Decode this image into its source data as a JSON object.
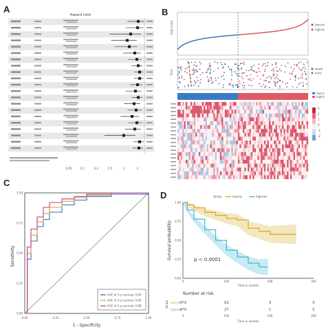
{
  "panels": {
    "A": {
      "letter": "A",
      "title": "Hazard ratio",
      "rows": [
        {
          "hr": 0.82,
          "lo": 0.6,
          "hi": 0.98
        },
        {
          "hr": 0.8,
          "lo": 0.56,
          "hi": 0.96
        },
        {
          "hr": 0.6,
          "lo": 0.18,
          "hi": 0.9
        },
        {
          "hr": 0.5,
          "lo": 0.22,
          "hi": 0.78
        },
        {
          "hr": 0.56,
          "lo": 0.3,
          "hi": 0.8
        },
        {
          "hr": 0.72,
          "lo": 0.5,
          "hi": 0.9
        },
        {
          "hr": 0.78,
          "lo": 0.62,
          "hi": 0.92
        },
        {
          "hr": 0.82,
          "lo": 0.7,
          "hi": 0.94
        },
        {
          "hr": 0.86,
          "lo": 0.76,
          "hi": 0.96
        },
        {
          "hr": 0.86,
          "lo": 0.75,
          "hi": 0.97
        },
        {
          "hr": 0.8,
          "lo": 0.66,
          "hi": 0.94
        },
        {
          "hr": 0.74,
          "lo": 0.56,
          "hi": 0.92
        },
        {
          "hr": 0.82,
          "lo": 0.7,
          "hi": 0.94
        },
        {
          "hr": 0.7,
          "lo": 0.52,
          "hi": 0.88
        },
        {
          "hr": 0.76,
          "lo": 0.6,
          "hi": 0.92
        },
        {
          "hr": 0.64,
          "lo": 0.44,
          "hi": 0.84
        },
        {
          "hr": 0.78,
          "lo": 0.62,
          "hi": 0.94
        },
        {
          "hr": 0.72,
          "lo": 0.54,
          "hi": 0.9
        },
        {
          "hr": 0.4,
          "lo": 0.06,
          "hi": 0.74
        },
        {
          "hr": 0.86,
          "lo": 0.74,
          "hi": 0.98
        },
        {
          "hr": 0.84,
          "lo": 0.72,
          "hi": 0.96
        }
      ],
      "axis_ticks": [
        "0.05",
        "0.1",
        "0.2",
        "0.5",
        "1",
        "2"
      ]
    },
    "B": {
      "letter": "B",
      "legend_top": [
        "lowrisk",
        "highrisk"
      ],
      "legend_mid": [
        "death",
        "alive"
      ],
      "legend_group": [
        "lowrisk",
        "highrisk"
      ],
      "scale_ticks": [
        "3",
        "2",
        "1",
        "0",
        "-1",
        "-2"
      ]
    },
    "C": {
      "letter": "C",
      "ylabel": "Sensitivity",
      "xlabel": "1 - Specificity",
      "y_ticks": [
        "1.00",
        "0.75",
        "0.50",
        "0.25",
        "0.00"
      ],
      "x_ticks": [
        "0.00",
        "0.25",
        "0.50",
        "0.75",
        "1.00"
      ],
      "legend": [
        {
          "label": "AUC of 1-y survival: 0.83",
          "color": "#2b6fb0"
        },
        {
          "label": "AUC of 3-y survival: 0.85",
          "color": "#d4a22a"
        },
        {
          "label": "AUC of 5-y survival: 0.88",
          "color": "#c0398a"
        }
      ]
    },
    "D": {
      "letter": "D",
      "strata_label": "Strata",
      "strata": [
        {
          "label": "lowrisk",
          "color": "#d4b02a"
        },
        {
          "label": "highrisk",
          "color": "#4ab8dc"
        }
      ],
      "ylabel": "Survival probability",
      "xlabel": "Time in months",
      "y_ticks": [
        "1.00",
        "0.75",
        "0.50",
        "0.25",
        "0.00"
      ],
      "x_ticks": [
        "0",
        "100",
        "200",
        "300"
      ],
      "pvalue": "p < 0.0001",
      "risk_title": "Number at risk",
      "risk_rows": [
        {
          "label": "lowrisk",
          "values": [
            "479",
            "62",
            "9",
            "0"
          ]
        },
        {
          "label": "highrisk",
          "values": [
            "479",
            "27",
            "1",
            "0"
          ]
        }
      ],
      "risk_xlabel": "Time in months",
      "risk_side_label": "Strata"
    }
  },
  "chart_data": [
    {
      "type": "line",
      "title": "",
      "xlabel": "1 - Specificity",
      "ylabel": "Sensitivity",
      "xlim": [
        0,
        1
      ],
      "ylim": [
        0,
        1
      ],
      "series": [
        {
          "name": "AUC of 1-y survival: 0.83",
          "x": [
            0,
            0.02,
            0.05,
            0.1,
            0.15,
            0.2,
            0.3,
            0.4,
            0.5,
            0.7,
            1
          ],
          "y": [
            0,
            0.45,
            0.6,
            0.72,
            0.78,
            0.84,
            0.9,
            0.94,
            0.97,
            0.99,
            1
          ]
        },
        {
          "name": "AUC of 3-y survival: 0.85",
          "x": [
            0,
            0.02,
            0.05,
            0.1,
            0.15,
            0.2,
            0.3,
            0.4,
            0.5,
            0.7,
            1
          ],
          "y": [
            0,
            0.5,
            0.65,
            0.76,
            0.83,
            0.88,
            0.93,
            0.96,
            0.98,
            1,
            1
          ]
        },
        {
          "name": "AUC of 5-y survival: 0.88",
          "x": [
            0,
            0.02,
            0.05,
            0.1,
            0.15,
            0.2,
            0.3,
            0.4,
            0.5,
            0.7,
            1
          ],
          "y": [
            0,
            0.55,
            0.7,
            0.8,
            0.88,
            0.92,
            0.95,
            0.97,
            0.99,
            1,
            1
          ]
        }
      ]
    },
    {
      "type": "line",
      "title": "",
      "xlabel": "Time in months",
      "ylabel": "Survival probability",
      "xlim": [
        0,
        300
      ],
      "ylim": [
        0,
        1
      ],
      "series": [
        {
          "name": "lowrisk",
          "x": [
            0,
            10,
            25,
            50,
            75,
            100,
            125,
            150,
            175,
            200,
            225,
            260
          ],
          "y": [
            1,
            0.97,
            0.93,
            0.87,
            0.83,
            0.79,
            0.77,
            0.66,
            0.62,
            0.58,
            0.58,
            0.58
          ]
        },
        {
          "name": "highrisk",
          "x": [
            0,
            10,
            25,
            50,
            75,
            100,
            125,
            150,
            175,
            195
          ],
          "y": [
            1,
            0.9,
            0.78,
            0.64,
            0.5,
            0.37,
            0.28,
            0.2,
            0.15,
            0.15
          ]
        }
      ]
    }
  ]
}
